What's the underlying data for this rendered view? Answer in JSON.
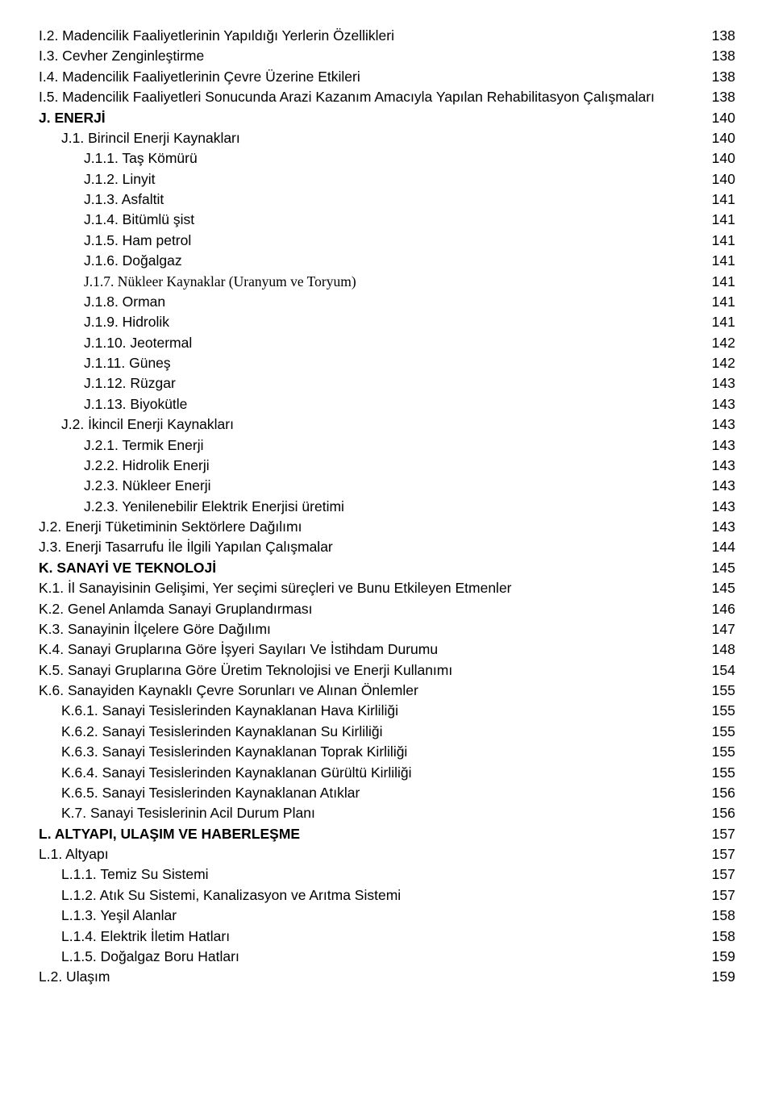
{
  "toc": [
    {
      "label": "I.2. Madencilik Faaliyetlerinin Yapıldığı Yerlerin Özellikleri",
      "page": "138",
      "indent": 0,
      "bold": false,
      "serif": false
    },
    {
      "label": "I.3. Cevher Zenginleştirme",
      "page": "138",
      "indent": 0,
      "bold": false,
      "serif": false
    },
    {
      "label": "I.4. Madencilik Faaliyetlerinin Çevre Üzerine Etkileri",
      "page": "138",
      "indent": 0,
      "bold": false,
      "serif": false
    },
    {
      "label": "I.5. Madencilik Faaliyetleri Sonucunda Arazi Kazanım Amacıyla Yapılan Rehabilitasyon Çalışmaları",
      "page": "138",
      "indent": 0,
      "bold": false,
      "serif": false
    },
    {
      "label": "J. ENERJİ",
      "page": "140",
      "indent": 0,
      "bold": true,
      "serif": false
    },
    {
      "label": "J.1. Birincil Enerji Kaynakları",
      "page": "140",
      "indent": 1,
      "bold": false,
      "serif": false
    },
    {
      "label": "J.1.1. Taş Kömürü",
      "page": "140",
      "indent": 2,
      "bold": false,
      "serif": false
    },
    {
      "label": "J.1.2. Linyit",
      "page": "140",
      "indent": 2,
      "bold": false,
      "serif": false
    },
    {
      "label": "J.1.3. Asfaltit",
      "page": "141",
      "indent": 2,
      "bold": false,
      "serif": false
    },
    {
      "label": "J.1.4. Bitümlü şist",
      "page": "141",
      "indent": 2,
      "bold": false,
      "serif": false
    },
    {
      "label": "J.1.5. Ham petrol",
      "page": "141",
      "indent": 2,
      "bold": false,
      "serif": false
    },
    {
      "label": "J.1.6. Doğalgaz",
      "page": "141",
      "indent": 2,
      "bold": false,
      "serif": false
    },
    {
      "label": "J.1.7. Nükleer Kaynaklar (Uranyum ve Toryum)",
      "page": "141",
      "indent": 2,
      "bold": false,
      "serif": true
    },
    {
      "label": "J.1.8. Orman",
      "page": "141",
      "indent": 2,
      "bold": false,
      "serif": false
    },
    {
      "label": "J.1.9. Hidrolik",
      "page": "141",
      "indent": 2,
      "bold": false,
      "serif": false
    },
    {
      "label": "J.1.10. Jeotermal",
      "page": "142",
      "indent": 2,
      "bold": false,
      "serif": false
    },
    {
      "label": "J.1.11. Güneş",
      "page": "142",
      "indent": 2,
      "bold": false,
      "serif": false
    },
    {
      "label": "J.1.12. Rüzgar",
      "page": "143",
      "indent": 2,
      "bold": false,
      "serif": false
    },
    {
      "label": "J.1.13. Biyokütle",
      "page": "143",
      "indent": 2,
      "bold": false,
      "serif": false
    },
    {
      "label": "J.2. İkincil Enerji Kaynakları",
      "page": "143",
      "indent": 1,
      "bold": false,
      "serif": false
    },
    {
      "label": "J.2.1. Termik Enerji",
      "page": "143",
      "indent": 2,
      "bold": false,
      "serif": false
    },
    {
      "label": "J.2.2. Hidrolik Enerji",
      "page": "143",
      "indent": 2,
      "bold": false,
      "serif": false
    },
    {
      "label": "J.2.3. Nükleer Enerji",
      "page": "143",
      "indent": 2,
      "bold": false,
      "serif": false
    },
    {
      "label": "J.2.3. Yenilenebilir Elektrik Enerjisi üretimi",
      "page": "143",
      "indent": 2,
      "bold": false,
      "serif": false
    },
    {
      "label": "J.2. Enerji Tüketiminin Sektörlere Dağılımı",
      "page": "143",
      "indent": 0,
      "bold": false,
      "serif": false
    },
    {
      "label": "J.3. Enerji Tasarrufu İle İlgili Yapılan Çalışmalar",
      "page": "144",
      "indent": 0,
      "bold": false,
      "serif": false
    },
    {
      "label": "K. SANAYİ VE TEKNOLOJİ",
      "page": "145",
      "indent": 0,
      "bold": true,
      "serif": false
    },
    {
      "label": "K.1. İl Sanayisinin Gelişimi, Yer seçimi süreçleri ve Bunu Etkileyen Etmenler",
      "page": "145",
      "indent": 0,
      "bold": false,
      "serif": false
    },
    {
      "label": "K.2. Genel Anlamda Sanayi Gruplandırması",
      "page": "146",
      "indent": 0,
      "bold": false,
      "serif": false
    },
    {
      "label": "K.3. Sanayinin İlçelere Göre Dağılımı",
      "page": "147",
      "indent": 0,
      "bold": false,
      "serif": false
    },
    {
      "label": "K.4. Sanayi Gruplarına Göre İşyeri Sayıları Ve İstihdam Durumu",
      "page": "148",
      "indent": 0,
      "bold": false,
      "serif": false
    },
    {
      "label": "K.5. Sanayi Gruplarına Göre Üretim Teknolojisi ve Enerji Kullanımı",
      "page": "154",
      "indent": 0,
      "bold": false,
      "serif": false
    },
    {
      "label": "K.6. Sanayiden Kaynaklı Çevre Sorunları ve Alınan Önlemler",
      "page": "155",
      "indent": 0,
      "bold": false,
      "serif": false
    },
    {
      "label": "K.6.1. Sanayi Tesislerinden Kaynaklanan Hava Kirliliği",
      "page": "155",
      "indent": 1,
      "bold": false,
      "serif": false
    },
    {
      "label": "K.6.2. Sanayi Tesislerinden Kaynaklanan Su Kirliliği",
      "page": "155",
      "indent": 1,
      "bold": false,
      "serif": false
    },
    {
      "label": "K.6.3. Sanayi Tesislerinden Kaynaklanan Toprak Kirliliği",
      "page": "155",
      "indent": 1,
      "bold": false,
      "serif": false
    },
    {
      "label": "K.6.4. Sanayi Tesislerinden Kaynaklanan Gürültü Kirliliği",
      "page": "155",
      "indent": 1,
      "bold": false,
      "serif": false
    },
    {
      "label": "K.6.5. Sanayi Tesislerinden Kaynaklanan Atıklar",
      "page": "156",
      "indent": 1,
      "bold": false,
      "serif": false
    },
    {
      "label": "K.7. Sanayi Tesislerinin Acil Durum Planı",
      "page": "156",
      "indent": 1,
      "bold": false,
      "serif": false
    },
    {
      "label": "L. ALTYAPI, ULAŞIM VE  HABERLEŞME",
      "page": "157",
      "indent": 0,
      "bold": true,
      "serif": false
    },
    {
      "label": "L.1. Altyapı",
      "page": "157",
      "indent": 0,
      "bold": false,
      "serif": false
    },
    {
      "label": "L.1.1. Temiz Su Sistemi",
      "page": "157",
      "indent": 1,
      "bold": false,
      "serif": false
    },
    {
      "label": "L.1.2. Atık Su Sistemi, Kanalizasyon ve Arıtma Sistemi",
      "page": "157",
      "indent": 1,
      "bold": false,
      "serif": false
    },
    {
      "label": "L.1.3. Yeşil Alanlar",
      "page": "158",
      "indent": 1,
      "bold": false,
      "serif": false
    },
    {
      "label": "L.1.4. Elektrik İletim Hatları",
      "page": "158",
      "indent": 1,
      "bold": false,
      "serif": false
    },
    {
      "label": "L.1.5. Doğalgaz Boru Hatları",
      "page": "159",
      "indent": 1,
      "bold": false,
      "serif": false
    },
    {
      "label": "L.2. Ulaşım",
      "page": "159",
      "indent": 0,
      "bold": false,
      "serif": false
    }
  ]
}
